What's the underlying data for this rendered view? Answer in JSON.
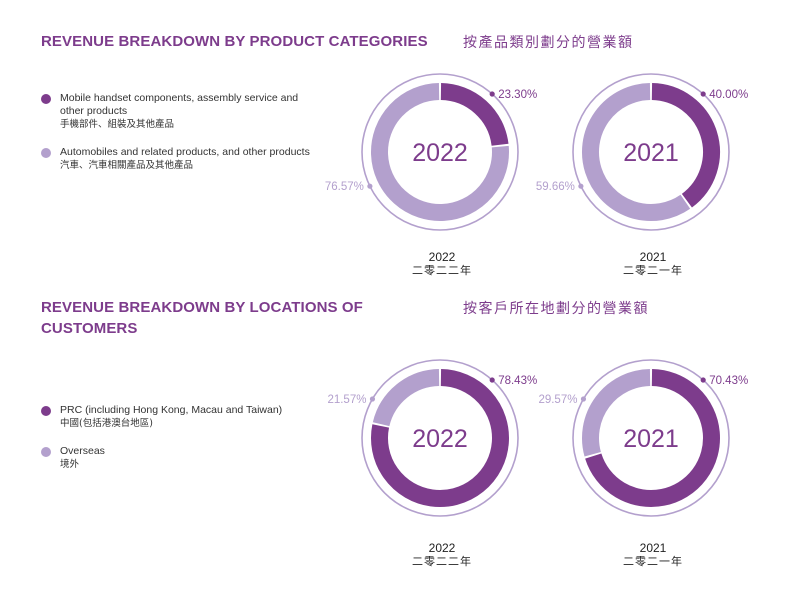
{
  "colors": {
    "dark": "#7d3c8c",
    "light": "#b3a0cd",
    "title": "#7d3c8c"
  },
  "sections": [
    {
      "title": "REVENUE BREAKDOWN BY PRODUCT CATEGORIES",
      "title_zh": "按產品類別劃分的營業額",
      "legend": [
        {
          "en": "Mobile handset components, assembly service and other products",
          "zh": "手機部件、組裝及其他產品",
          "color": "#7d3c8c"
        },
        {
          "en": "Automobiles and related products, and other products",
          "zh": "汽車、汽車相關產品及其他產品",
          "color": "#b3a0cd"
        }
      ]
    },
    {
      "title": "REVENUE BREAKDOWN BY LOCATIONS OF CUSTOMERS",
      "title_zh": "按客戶所在地劃分的營業額",
      "legend": [
        {
          "en": "PRC (including Hong Kong, Macau and Taiwan)",
          "zh": "中國(包括港澳台地區)",
          "color": "#7d3c8c"
        },
        {
          "en": "Overseas",
          "zh": "境外",
          "color": "#b3a0cd"
        }
      ]
    }
  ],
  "chart_data": [
    {
      "type": "pie",
      "center_label": "2022",
      "caption": "2022",
      "caption_zh": "二零二二年",
      "slices": [
        {
          "category": "Mobile handset components, assembly service and other products",
          "value": 23.3,
          "label": "23.30%"
        },
        {
          "category": "Automobiles and related products, and other products",
          "value": 76.57,
          "label": "76.57%"
        }
      ]
    },
    {
      "type": "pie",
      "center_label": "2021",
      "caption": "2021",
      "caption_zh": "二零二一年",
      "slices": [
        {
          "category": "Mobile handset components, assembly service and other products",
          "value": 40.0,
          "label": "40.00%"
        },
        {
          "category": "Automobiles and related products, and other products",
          "value": 59.66,
          "label": "59.66%"
        }
      ]
    },
    {
      "type": "pie",
      "center_label": "2022",
      "caption": "2022",
      "caption_zh": "二零二二年",
      "slices": [
        {
          "category": "PRC (including Hong Kong, Macau and Taiwan)",
          "value": 78.43,
          "label": "78.43%"
        },
        {
          "category": "Overseas",
          "value": 21.57,
          "label": "21.57%"
        }
      ]
    },
    {
      "type": "pie",
      "center_label": "2021",
      "caption": "2021",
      "caption_zh": "二零二一年",
      "slices": [
        {
          "category": "PRC (including Hong Kong, Macau and Taiwan)",
          "value": 70.43,
          "label": "70.43%"
        },
        {
          "category": "Overseas",
          "value": 29.57,
          "label": "29.57%"
        }
      ]
    }
  ]
}
